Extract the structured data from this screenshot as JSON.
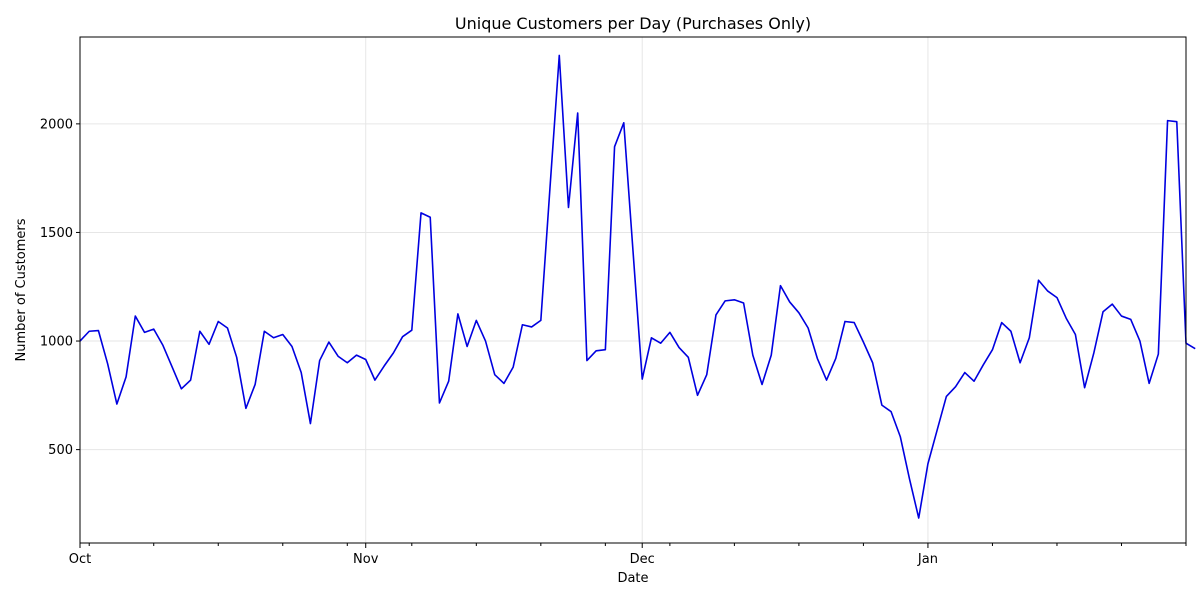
{
  "chart_data": {
    "type": "line",
    "title": "Unique Customers per Day (Purchases Only)",
    "xlabel": "Date",
    "ylabel": "Number of Customers",
    "xlim": [
      "2022-10-01",
      "2023-01-29"
    ],
    "ylim": [
      70,
      2400
    ],
    "y_ticks": [
      500,
      1000,
      1500,
      2000
    ],
    "x_ticks": [
      {
        "date": "2022-10-01",
        "label": "Oct"
      },
      {
        "date": "2022-11-01",
        "label": "Nov"
      },
      {
        "date": "2022-12-01",
        "label": "Dec"
      },
      {
        "date": "2023-01-01",
        "label": "Jan"
      }
    ],
    "grid": true,
    "line_color": "#0000e0",
    "series": [
      {
        "start_date": "2022-10-01",
        "step": "day",
        "values": [
          1000,
          1045,
          1048,
          895,
          710,
          835,
          1115,
          1040,
          1055,
          980,
          880,
          780,
          820,
          1045,
          985,
          1090,
          1060,
          925,
          690,
          800,
          1045,
          1015,
          1030,
          975,
          855,
          620,
          910,
          995,
          930,
          900,
          935,
          915,
          820,
          885,
          945,
          1020,
          1050,
          1590,
          1570,
          715,
          815,
          1125,
          975,
          1095,
          1000,
          845,
          805,
          880,
          1075,
          1065,
          1095,
          1710,
          2315,
          1615,
          2050,
          910,
          955,
          960,
          1895,
          2005,
          1415,
          825,
          1015,
          990,
          1040,
          970,
          925,
          750,
          845,
          1120,
          1185,
          1190,
          1175,
          935,
          800,
          935,
          1255,
          1180,
          1130,
          1060,
          920,
          820,
          920,
          1090,
          1085,
          995,
          900,
          705,
          675,
          560,
          365,
          185,
          435,
          590,
          745,
          790,
          855,
          815,
          890,
          960,
          1085,
          1045,
          900,
          1015,
          1280,
          1230,
          1200,
          1105,
          1030,
          785,
          945,
          1135,
          1170,
          1115,
          1100,
          1000,
          805,
          940,
          2015,
          2010,
          990,
          965
        ]
      }
    ]
  }
}
